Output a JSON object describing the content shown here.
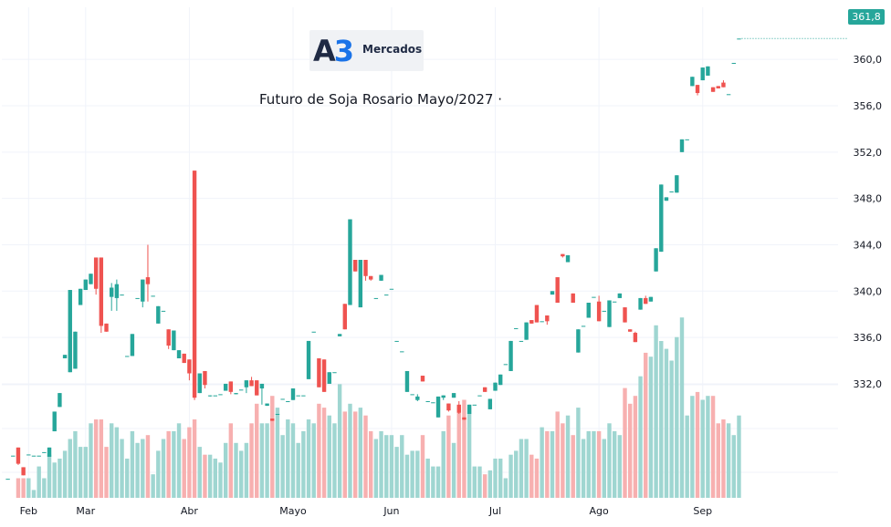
{
  "header": {
    "logo_mark": "A",
    "logo_mark_accent": "3",
    "logo_text": "Mercados",
    "title": "Futuro de Soja Rosario Mayo/2027 ·"
  },
  "last_price_label": "361,8",
  "colors": {
    "up": "#26a69a",
    "down": "#ef5350",
    "up_volume": "#9fd6d1",
    "down_volume": "#f7b0b0",
    "grid": "#f0f3fa",
    "axis_text": "#131722"
  },
  "chart_data": {
    "type": "candlestick",
    "title": "Futuro de Soja Rosario Mayo/2027 ·",
    "y_ticks": [
      "332,0",
      "336,0",
      "340,0",
      "344,0",
      "348,0",
      "352,0",
      "356,0",
      "360,0"
    ],
    "y_tick_values": [
      332,
      336,
      340,
      344,
      348,
      352,
      356,
      360
    ],
    "x_labels": [
      "Feb",
      "Mar",
      "Abr",
      "Mayo",
      "Jun",
      "Jul",
      "Ago",
      "Sep"
    ],
    "x_label_index": [
      4,
      15,
      35,
      55,
      74,
      94,
      114,
      134
    ],
    "ylim": [
      322.0,
      364.5
    ],
    "grid": true,
    "last_price": 361.8,
    "candles": [
      [
        323.8,
        323.8,
        323.8,
        323.8,
        0.0
      ],
      [
        325.8,
        325.8,
        325.8,
        325.8,
        0.0
      ],
      [
        326.5,
        326.5,
        325.0,
        325.1,
        0.5
      ],
      [
        324.8,
        324.8,
        324.1,
        324.1,
        0.5
      ],
      [
        325.9,
        325.9,
        325.9,
        325.9,
        0.5
      ],
      [
        325.8,
        325.8,
        325.8,
        325.8,
        0.2
      ],
      [
        325.8,
        325.8,
        325.8,
        325.8,
        0.8
      ],
      [
        326.1,
        326.1,
        326.1,
        326.1,
        0.5
      ],
      [
        325.7,
        326.5,
        325.7,
        326.5,
        1.1
      ],
      [
        327.9,
        329.6,
        327.9,
        329.6,
        0.9
      ],
      [
        330.0,
        331.2,
        330.0,
        331.2,
        1.0
      ],
      [
        334.2,
        334.5,
        334.2,
        334.5,
        1.2
      ],
      [
        333.0,
        340.1,
        333.0,
        340.1,
        1.5
      ],
      [
        333.3,
        336.5,
        333.3,
        336.5,
        1.7
      ],
      [
        338.8,
        340.2,
        338.8,
        340.2,
        1.3
      ],
      [
        340.1,
        341.0,
        340.1,
        341.0,
        1.3
      ],
      [
        340.6,
        341.5,
        340.6,
        341.5,
        1.9
      ],
      [
        342.9,
        342.9,
        339.7,
        340.2,
        2.0
      ],
      [
        342.9,
        342.9,
        336.4,
        337.0,
        2.0
      ],
      [
        337.2,
        337.2,
        336.5,
        336.5,
        1.3
      ],
      [
        339.5,
        340.7,
        338.3,
        340.3,
        1.9
      ],
      [
        339.4,
        341.0,
        338.3,
        340.6,
        1.8
      ],
      [
        339.7,
        339.7,
        339.7,
        339.7,
        1.5
      ],
      [
        334.4,
        334.4,
        334.4,
        334.4,
        1.0
      ],
      [
        334.4,
        336.3,
        334.4,
        336.3,
        1.7
      ],
      [
        339.4,
        339.4,
        339.4,
        339.4,
        1.4
      ],
      [
        339.1,
        341.0,
        338.6,
        341.0,
        1.5
      ],
      [
        341.2,
        344.0,
        339.1,
        340.6,
        1.6
      ],
      [
        339.6,
        339.6,
        339.6,
        339.6,
        0.6
      ],
      [
        337.2,
        338.7,
        337.2,
        338.7,
        1.2
      ],
      [
        338.3,
        338.3,
        338.3,
        338.3,
        1.5
      ],
      [
        336.7,
        336.7,
        335.0,
        335.3,
        1.7
      ],
      [
        334.9,
        336.6,
        334.9,
        336.6,
        1.7
      ],
      [
        334.2,
        334.9,
        334.2,
        334.9,
        1.9
      ],
      [
        334.6,
        334.6,
        333.8,
        333.8,
        1.5
      ],
      [
        334.1,
        334.1,
        332.3,
        332.9,
        1.8
      ],
      [
        350.4,
        350.4,
        330.6,
        330.8,
        2.0
      ],
      [
        331.2,
        332.9,
        331.2,
        332.9,
        1.3
      ],
      [
        333.1,
        333.1,
        331.6,
        331.9,
        1.1
      ],
      [
        331.0,
        331.0,
        330.9,
        331.0,
        1.1
      ],
      [
        331.0,
        331.0,
        331.0,
        331.0,
        1.0
      ],
      [
        331.1,
        331.1,
        331.1,
        331.1,
        0.9
      ],
      [
        331.4,
        332.0,
        331.4,
        332.0,
        1.4
      ],
      [
        332.2,
        332.2,
        331.1,
        331.3,
        1.9
      ],
      [
        331.1,
        331.2,
        331.1,
        331.2,
        1.4
      ],
      [
        331.5,
        331.5,
        331.5,
        331.5,
        1.2
      ],
      [
        331.7,
        332.3,
        331.2,
        332.3,
        1.4
      ],
      [
        332.3,
        332.6,
        331.8,
        331.8,
        1.9
      ],
      [
        332.3,
        332.3,
        331.0,
        331.0,
        2.4
      ],
      [
        331.6,
        332.0,
        330.2,
        332.0,
        1.9
      ],
      [
        330.1,
        330.3,
        330.1,
        330.3,
        1.9
      ],
      [
        329.0,
        329.0,
        328.8,
        328.8,
        2.6
      ],
      [
        329.4,
        329.4,
        329.4,
        329.4,
        2.3
      ],
      [
        330.7,
        330.7,
        330.7,
        330.7,
        1.6
      ],
      [
        330.5,
        330.5,
        330.5,
        330.5,
        2.0
      ],
      [
        330.6,
        331.6,
        330.6,
        331.6,
        1.9
      ],
      [
        331.0,
        331.0,
        331.0,
        331.0,
        1.4
      ],
      [
        331.0,
        331.0,
        331.0,
        331.0,
        1.7
      ],
      [
        332.4,
        335.7,
        332.4,
        335.7,
        2.0
      ],
      [
        336.5,
        336.5,
        336.5,
        336.5,
        1.9
      ],
      [
        334.2,
        334.2,
        331.7,
        331.7,
        2.4
      ],
      [
        334.1,
        334.1,
        331.3,
        331.3,
        2.3
      ],
      [
        332.0,
        333.0,
        332.0,
        333.0,
        2.1
      ],
      [
        333.0,
        333.0,
        333.0,
        333.0,
        1.9
      ],
      [
        336.1,
        336.3,
        336.1,
        336.3,
        2.9
      ],
      [
        338.9,
        338.9,
        336.7,
        336.7,
        2.2
      ],
      [
        338.8,
        346.2,
        338.8,
        346.2,
        2.4
      ],
      [
        342.7,
        342.7,
        341.7,
        341.7,
        2.2
      ],
      [
        338.6,
        342.7,
        338.6,
        342.7,
        2.3
      ],
      [
        342.7,
        342.7,
        340.9,
        341.3,
        2.1
      ],
      [
        341.3,
        341.3,
        340.9,
        341.0,
        1.7
      ],
      [
        339.4,
        339.4,
        339.4,
        339.4,
        1.5
      ],
      [
        340.9,
        341.4,
        340.9,
        341.4,
        1.7
      ],
      [
        339.7,
        339.7,
        339.7,
        339.7,
        1.6
      ],
      [
        340.2,
        340.2,
        340.2,
        340.2,
        1.6
      ],
      [
        335.7,
        335.7,
        335.7,
        335.7,
        1.3
      ],
      [
        334.8,
        334.8,
        334.8,
        334.8,
        1.6
      ],
      [
        331.3,
        333.1,
        331.3,
        333.1,
        1.1
      ],
      [
        331.1,
        331.1,
        331.1,
        331.1,
        1.2
      ],
      [
        330.6,
        331.1,
        330.5,
        330.9,
        1.2
      ],
      [
        332.7,
        332.7,
        332.2,
        332.2,
        1.6
      ],
      [
        330.5,
        330.5,
        330.5,
        330.5,
        1.0
      ],
      [
        330.4,
        330.4,
        330.4,
        330.4,
        0.8
      ],
      [
        329.1,
        330.9,
        329.1,
        330.9,
        0.8
      ],
      [
        330.8,
        331.0,
        330.6,
        331.0,
        1.7
      ],
      [
        330.3,
        330.3,
        329.6,
        329.7,
        2.1
      ],
      [
        330.8,
        331.2,
        330.8,
        331.2,
        1.4
      ],
      [
        330.2,
        330.5,
        329.4,
        329.5,
        2.3
      ],
      [
        329.1,
        329.1,
        328.9,
        328.9,
        2.5
      ],
      [
        329.4,
        330.2,
        329.4,
        330.2,
        2.3
      ],
      [
        330.2,
        330.2,
        330.2,
        330.2,
        0.8
      ],
      [
        331.0,
        331.0,
        331.0,
        331.0,
        0.8
      ],
      [
        331.7,
        331.7,
        331.3,
        331.3,
        0.6
      ],
      [
        329.8,
        330.7,
        329.8,
        330.7,
        0.7
      ],
      [
        331.4,
        332.1,
        331.4,
        332.1,
        1.0
      ],
      [
        331.9,
        332.8,
        331.9,
        332.8,
        1.0
      ],
      [
        333.7,
        333.7,
        333.7,
        333.7,
        0.5
      ],
      [
        333.1,
        335.7,
        333.1,
        335.7,
        1.1
      ],
      [
        336.8,
        336.8,
        336.8,
        336.8,
        1.2
      ],
      [
        335.7,
        335.7,
        335.7,
        335.7,
        1.5
      ],
      [
        335.8,
        337.3,
        335.8,
        337.3,
        1.5
      ],
      [
        337.5,
        337.5,
        337.2,
        337.2,
        1.1
      ],
      [
        338.8,
        338.8,
        337.3,
        337.3,
        1.0
      ],
      [
        337.4,
        337.4,
        337.4,
        337.4,
        1.8
      ],
      [
        337.9,
        337.9,
        337.1,
        337.4,
        1.7
      ],
      [
        339.7,
        340.0,
        339.7,
        340.0,
        1.7
      ],
      [
        341.2,
        341.2,
        339.0,
        339.0,
        2.2
      ],
      [
        343.2,
        343.2,
        342.9,
        343.0,
        1.9
      ],
      [
        342.5,
        343.1,
        342.5,
        343.1,
        2.1
      ],
      [
        339.8,
        339.8,
        339.0,
        339.0,
        1.6
      ],
      [
        334.7,
        336.7,
        334.7,
        336.7,
        2.3
      ],
      [
        337.0,
        337.0,
        337.0,
        337.0,
        1.5
      ],
      [
        337.7,
        339.0,
        337.7,
        339.0,
        1.7
      ],
      [
        339.5,
        339.5,
        339.5,
        339.5,
        1.7
      ],
      [
        339.1,
        339.6,
        337.4,
        337.4,
        1.7
      ],
      [
        338.3,
        338.3,
        338.3,
        338.3,
        1.5
      ],
      [
        336.9,
        339.2,
        336.9,
        339.2,
        1.9
      ],
      [
        339.1,
        339.1,
        339.1,
        339.1,
        1.7
      ],
      [
        339.4,
        339.8,
        339.4,
        339.8,
        1.6
      ],
      [
        338.6,
        338.6,
        337.3,
        337.3,
        2.8
      ],
      [
        336.7,
        336.7,
        336.5,
        336.5,
        2.4
      ],
      [
        336.4,
        336.5,
        335.6,
        335.6,
        2.6
      ],
      [
        338.4,
        339.4,
        338.4,
        339.4,
        3.1
      ],
      [
        339.4,
        339.6,
        338.9,
        338.9,
        3.7
      ],
      [
        339.1,
        339.5,
        339.1,
        339.5,
        3.6
      ],
      [
        341.7,
        343.7,
        341.7,
        343.7,
        4.4
      ],
      [
        343.4,
        349.2,
        343.4,
        349.2,
        4.0
      ],
      [
        347.8,
        348.1,
        347.8,
        348.1,
        3.8
      ],
      [
        348.6,
        348.6,
        348.6,
        348.6,
        3.5
      ],
      [
        348.5,
        350.0,
        348.5,
        350.0,
        4.1
      ],
      [
        352.0,
        353.1,
        352.0,
        353.1,
        4.6
      ],
      [
        353.1,
        353.1,
        353.1,
        353.1,
        2.1
      ],
      [
        357.7,
        358.5,
        357.7,
        358.5,
        2.6
      ],
      [
        357.8,
        357.8,
        356.9,
        357.1,
        2.7
      ],
      [
        358.2,
        359.3,
        358.2,
        359.3,
        2.5
      ],
      [
        358.6,
        359.4,
        358.6,
        359.4,
        2.6
      ],
      [
        357.6,
        357.6,
        357.2,
        357.2,
        2.6
      ],
      [
        357.7,
        357.7,
        357.5,
        357.5,
        1.9
      ],
      [
        358.0,
        358.2,
        357.6,
        357.6,
        2.0
      ],
      [
        357.0,
        357.0,
        357.0,
        357.0,
        1.9
      ],
      [
        359.7,
        359.7,
        359.7,
        359.7,
        1.6
      ],
      [
        361.8,
        361.8,
        361.8,
        361.8,
        2.1
      ]
    ]
  }
}
